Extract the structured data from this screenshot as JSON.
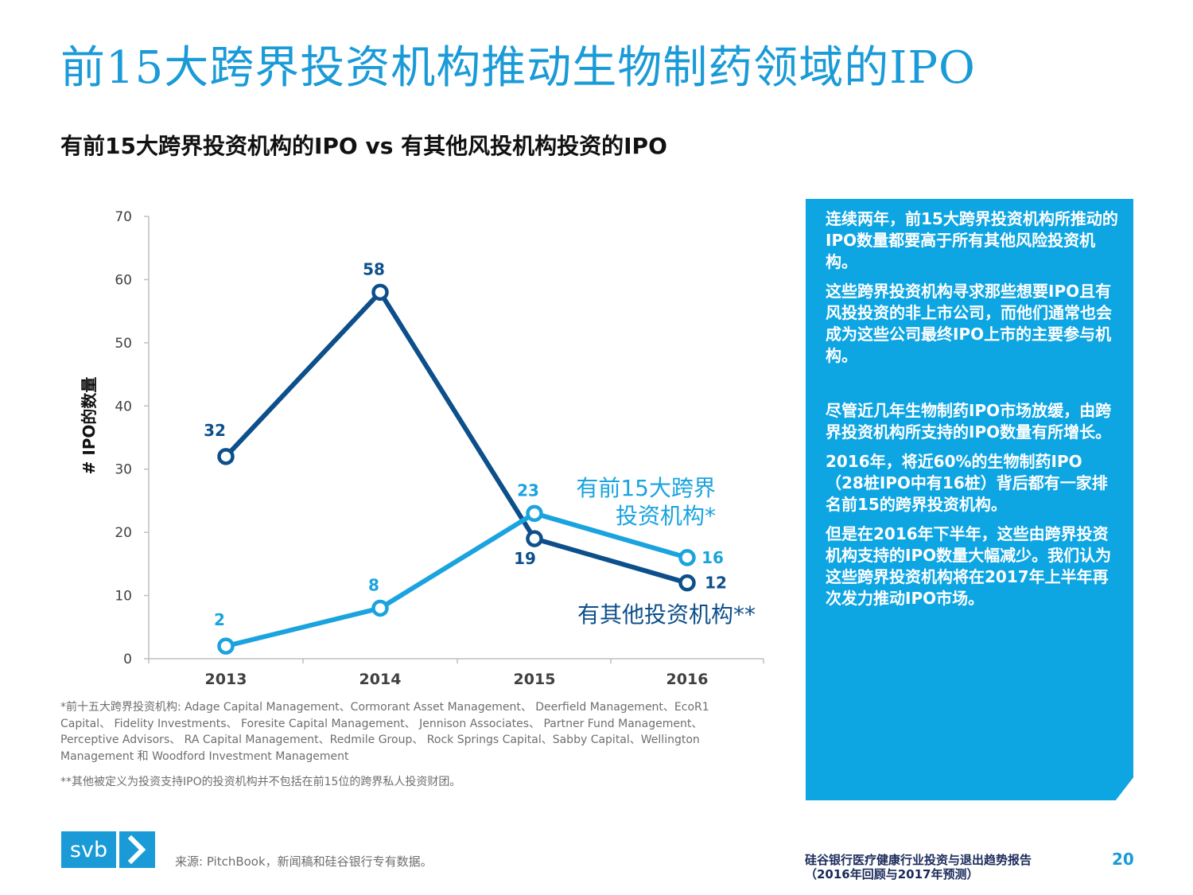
{
  "header": {
    "title": "前15大跨界投资机构推动生物制药领域的IPO",
    "subtitle": "有前15大跨界投资机构的IPO vs 有其他风投机构投资的IPO"
  },
  "chart_data": {
    "type": "line",
    "title": "有前15大跨界投资机构的IPO vs 有其他风投机构投资的IPO",
    "xlabel": "",
    "ylabel": "# IPO的数量",
    "categories": [
      "2013",
      "2014",
      "2015",
      "2016"
    ],
    "ylim": [
      0,
      70
    ],
    "yticks": [
      "0",
      "10",
      "20",
      "30",
      "40",
      "50",
      "60",
      "70"
    ],
    "series": [
      {
        "name": "有其他投资机构**",
        "values": [
          32,
          58,
          19,
          12
        ],
        "labels": [
          "32",
          "58",
          "19",
          "12"
        ],
        "color": "#0d4f8b"
      },
      {
        "name": "有前15大跨界投资机构*",
        "legend_lines": [
          "有前15大跨界",
          "投资机构*"
        ],
        "values": [
          2,
          8,
          23,
          16
        ],
        "labels": [
          "2",
          "8",
          "23",
          "16"
        ],
        "color": "#1aa3de"
      }
    ]
  },
  "footnotes": {
    "note1": "*前十五大跨界投资机构: Adage Capital Management、Cormorant Asset Management、 Deerfield Management、EcoR1 Capital、 Fidelity Investments、 Foresite Capital Management、 Jennison Associates、 Partner Fund Management、 Perceptive Advisors、 RA Capital Management、Redmile Group、 Rock Springs Capital、Sabby Capital、Wellington Management 和 Woodford Investment Management",
    "note2": "**其他被定义为投资支持IPO的投资机构并不包括在前15位的跨界私人投资财团。"
  },
  "side_panel": {
    "p1": "连续两年，前15大跨界投资机构所推动的IPO数量都要高于所有其他风险投资机构。",
    "p2": "这些跨界投资机构寻求那些想要IPO且有风投投资的非上市公司，而他们通常也会成为这些公司最终IPO上市的主要参与机构。",
    "p3": "尽管近几年生物制药IPO市场放缓，由跨界投资机构所支持的IPO数量有所增长。",
    "p4": "2016年，将近60%的生物制药IPO（28桩IPO中有16桩）背后都有一家排名前15的跨界投资机构。",
    "p5": "但是在2016年下半年，这些由跨界投资机构支持的IPO数量大幅减少。我们认为这些跨界投资机构将在2017年上半年再次发力推动IPO市场。"
  },
  "footer": {
    "logo_text": "svb",
    "source": "来源: PitchBook，新闻稿和硅谷银行专有数据。",
    "report_line1": "硅谷银行医疗健康行业投资与退出趋势报告",
    "report_line2": "（2016年回顾与2017年预测）",
    "page_number": "20"
  },
  "colors": {
    "brand": "#1a9bd7",
    "dark_series": "#0d4f8b",
    "light_series": "#1aa3de",
    "panel": "#0ea5e3"
  }
}
